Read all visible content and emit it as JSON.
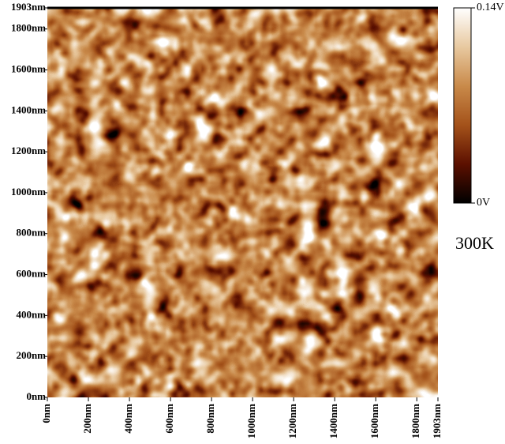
{
  "chart_data": {
    "type": "image",
    "xlim": [
      0,
      1903
    ],
    "xticks": [
      {
        "value": 0,
        "label": "0nm"
      },
      {
        "value": 200,
        "label": "200nm"
      },
      {
        "value": 400,
        "label": "400nm"
      },
      {
        "value": 600,
        "label": "600nm"
      },
      {
        "value": 800,
        "label": "800nm"
      },
      {
        "value": 1000,
        "label": "1000nm"
      },
      {
        "value": 1200,
        "label": "1200nm"
      },
      {
        "value": 1400,
        "label": "1400nm"
      },
      {
        "value": 1600,
        "label": "1600nm"
      },
      {
        "value": 1800,
        "label": "1800nm"
      },
      {
        "value": 1903,
        "label": "1903nm"
      }
    ],
    "ylim": [
      0,
      1903
    ],
    "yticks": [
      {
        "value": 0,
        "label": "0nm"
      },
      {
        "value": 200,
        "label": "200nm"
      },
      {
        "value": 400,
        "label": "400nm"
      },
      {
        "value": 600,
        "label": "600nm"
      },
      {
        "value": 800,
        "label": "800nm"
      },
      {
        "value": 1000,
        "label": "1000nm"
      },
      {
        "value": 1200,
        "label": "1200nm"
      },
      {
        "value": 1400,
        "label": "1400nm"
      },
      {
        "value": 1600,
        "label": "1600nm"
      },
      {
        "value": 1800,
        "label": "1800nm"
      },
      {
        "value": 1903,
        "label": "1903nm"
      }
    ],
    "colorbar": {
      "lim": [
        0,
        0.14
      ],
      "ticks": [
        {
          "value": 0,
          "label": "0V"
        },
        {
          "value": 0.14,
          "label": "0.14V"
        }
      ],
      "colormap": [
        "#000000",
        "#5c1000",
        "#a4521a",
        "#c98a4a",
        "#e8c9a0",
        "#ffffff"
      ]
    },
    "annotation": "300K"
  }
}
